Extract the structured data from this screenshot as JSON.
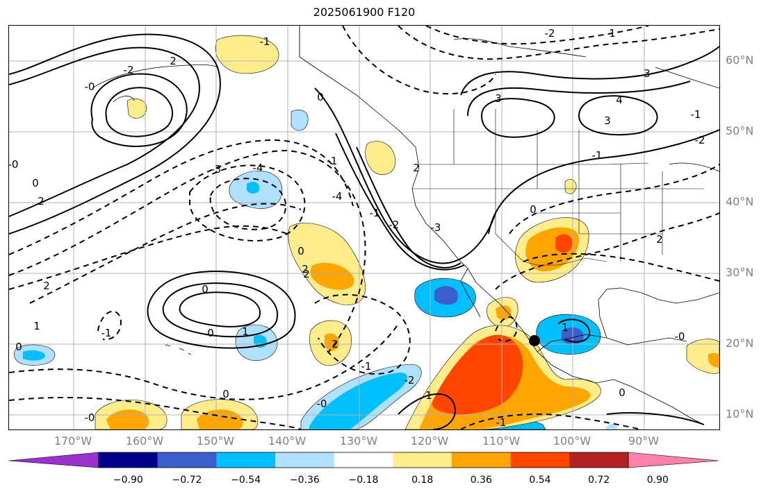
{
  "title": "2025061900 F120",
  "lat_labels": [
    "60°N",
    "50°N",
    "40°N",
    "30°N",
    "20°N",
    "10°N"
  ],
  "lon_labels": [
    "170°W",
    "160°W",
    "150°W",
    "140°W",
    "130°W",
    "120°W",
    "110°W",
    "100°W",
    "90°W"
  ],
  "colorbar": {
    "ticks": [
      "-0.90",
      "-0.72",
      "-0.54",
      "-0.36",
      "-0.18",
      "0.18",
      "0.36",
      "0.54",
      "0.72",
      "0.90"
    ],
    "colors": [
      "#9a32cd",
      "#00008b",
      "#3a5fcd",
      "#00bfff",
      "#afe0ff",
      "#ffffff",
      "#ffec8b",
      "#ffa500",
      "#ff4500",
      "#b22222",
      "#ff82ab"
    ]
  },
  "contour_labels": [
    "0",
    "-1",
    "-2",
    "-2",
    "-2",
    "1",
    "-4",
    "-3",
    "-0",
    "2",
    "3",
    "4",
    "3",
    "0",
    "-1",
    "2",
    "-3",
    "-4",
    "-2",
    "-1",
    "0",
    "-0",
    "-2",
    "-1",
    "2",
    "0",
    "0",
    "1",
    "-1",
    "-0",
    "0",
    "2",
    "2",
    "1",
    "-2",
    "-1",
    "-0",
    "0",
    "1",
    "0",
    "-0",
    "0",
    "1",
    "2",
    "2",
    "3",
    "2",
    "-2",
    "-1",
    "0",
    "-1"
  ]
}
